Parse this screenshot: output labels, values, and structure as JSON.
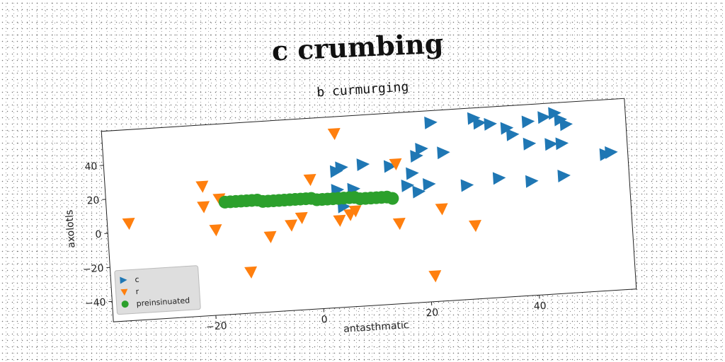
{
  "page": {
    "main_title": "c crumbing"
  },
  "chart_data": {
    "type": "scatter",
    "title": "b curmurging",
    "xlabel": "antasthmatic",
    "ylabel": "axolotls",
    "xlim": [
      -39,
      58
    ],
    "ylim": [
      -52,
      60
    ],
    "xticks": [
      -20,
      0,
      20,
      40
    ],
    "yticks": [
      -40,
      -20,
      0,
      20,
      40
    ],
    "legend_position": "lower-left",
    "series": [
      {
        "name": "c",
        "marker": "triangle-right",
        "color": "#1f77b4",
        "points": [
          [
            22,
            53
          ],
          [
            30,
            54
          ],
          [
            31,
            51
          ],
          [
            33,
            50
          ],
          [
            40,
            50
          ],
          [
            43,
            52
          ],
          [
            45,
            54
          ],
          [
            46,
            50
          ],
          [
            47,
            47
          ],
          [
            36,
            47
          ],
          [
            37,
            43
          ],
          [
            40,
            37
          ],
          [
            44,
            36
          ],
          [
            46,
            36
          ],
          [
            20,
            38
          ],
          [
            19,
            34
          ],
          [
            24,
            35
          ],
          [
            54,
            28
          ],
          [
            55,
            29
          ],
          [
            4,
            28
          ],
          [
            5,
            30
          ],
          [
            9,
            31
          ],
          [
            14,
            29
          ],
          [
            4,
            17
          ],
          [
            7,
            17
          ],
          [
            18,
            24
          ],
          [
            17,
            17
          ],
          [
            21,
            17
          ],
          [
            19,
            13
          ],
          [
            28,
            15
          ],
          [
            34,
            18
          ],
          [
            40,
            15
          ],
          [
            46,
            17
          ],
          [
            5,
            7
          ]
        ]
      },
      {
        "name": "r",
        "marker": "triangle-down",
        "color": "#ff7f0e",
        "points": [
          [
            4,
            50
          ],
          [
            15,
            30
          ],
          [
            -1,
            24
          ],
          [
            -21,
            24
          ],
          [
            -21,
            12
          ],
          [
            -18,
            16
          ],
          [
            -35,
            5
          ],
          [
            -19,
            -2
          ],
          [
            -9,
            -8
          ],
          [
            -5,
            -2
          ],
          [
            -3,
            2
          ],
          [
            4,
            -1
          ],
          [
            7,
            4
          ],
          [
            6,
            2
          ],
          [
            15,
            -5
          ],
          [
            23,
            2
          ],
          [
            29,
            -9
          ],
          [
            -13,
            -28
          ],
          [
            21,
            -37
          ]
        ]
      },
      {
        "name": "preinsinuated",
        "marker": "circle",
        "color": "#2ca02c",
        "points": [
          [
            -17,
            14
          ],
          [
            -16,
            14
          ],
          [
            -15,
            14
          ],
          [
            -14,
            14
          ],
          [
            -13,
            14
          ],
          [
            -12,
            14
          ],
          [
            -11,
            14
          ],
          [
            -10,
            13
          ],
          [
            -9,
            13
          ],
          [
            -8,
            13
          ],
          [
            -7,
            13
          ],
          [
            -6,
            13
          ],
          [
            -5,
            13
          ],
          [
            -4,
            13
          ],
          [
            -3,
            13
          ],
          [
            -2,
            13
          ],
          [
            -1,
            13
          ],
          [
            0,
            12
          ],
          [
            1,
            12
          ],
          [
            2,
            12
          ],
          [
            3,
            12
          ],
          [
            4,
            12
          ],
          [
            5,
            12
          ],
          [
            6,
            12
          ],
          [
            7,
            12
          ],
          [
            8,
            11
          ],
          [
            9,
            11
          ],
          [
            10,
            11
          ],
          [
            11,
            11
          ],
          [
            12,
            11
          ],
          [
            13,
            11
          ],
          [
            14,
            10
          ]
        ]
      }
    ]
  }
}
